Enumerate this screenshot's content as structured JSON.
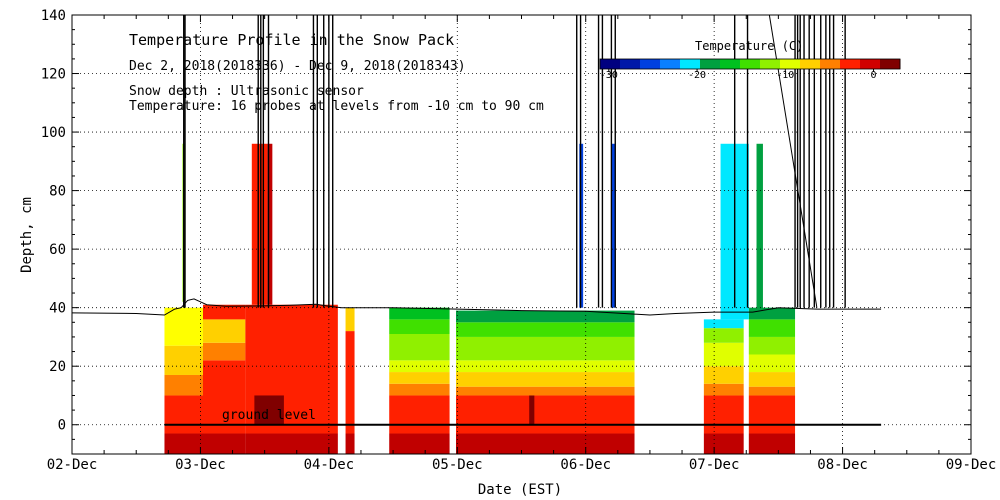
{
  "chart_data": {
    "type": "heatmap",
    "title": "Temperature Profile in the Snow Pack",
    "subtitle": "Dec  2, 2018(2018336) - Dec  9, 2018(2018343)",
    "note_depth": "Snow depth : Ultrasonic sensor",
    "note_temp": "Temperature: 16 probes at levels from -10 cm to 90 cm",
    "ground_label": "ground level",
    "xlabel": "Date (EST)",
    "ylabel": "Depth, cm",
    "x_tick_labels": [
      "02-Dec",
      "03-Dec",
      "04-Dec",
      "05-Dec",
      "06-Dec",
      "07-Dec",
      "08-Dec",
      "09-Dec"
    ],
    "xlim_days": [
      0,
      7
    ],
    "y_ticks": [
      0,
      20,
      40,
      60,
      80,
      100,
      120,
      140
    ],
    "ylim": [
      -10,
      140
    ],
    "grid": true,
    "colorbar": {
      "title": "Temperature (C)",
      "range": [
        -31,
        3
      ],
      "tick_values": [
        -30,
        -20,
        -10,
        0
      ],
      "tick_labels": [
        "-30",
        "-20",
        "-10",
        "0"
      ],
      "colors": [
        "#000080",
        "#0018a8",
        "#0040e0",
        "#0a80ff",
        "#00e8ff",
        "#00a040",
        "#00c020",
        "#40e000",
        "#90f000",
        "#e0ff00",
        "#ffd000",
        "#ff8000",
        "#ff2000",
        "#d00000",
        "#800000"
      ]
    },
    "snow_depth_cm": [
      [
        0.0,
        38.2
      ],
      [
        0.5,
        38.0
      ],
      [
        0.72,
        37.5
      ],
      [
        0.8,
        39.5
      ],
      [
        0.85,
        40.0
      ],
      [
        0.9,
        42.5
      ],
      [
        0.95,
        43.0
      ],
      [
        1.0,
        42.0
      ],
      [
        1.05,
        41.0
      ],
      [
        1.2,
        40.5
      ],
      [
        1.5,
        40.6
      ],
      [
        1.7,
        40.8
      ],
      [
        1.9,
        41.2
      ],
      [
        2.0,
        40.5
      ],
      [
        2.1,
        40.0
      ],
      [
        2.5,
        40.0
      ],
      [
        3.0,
        39.5
      ],
      [
        3.5,
        39.0
      ],
      [
        4.0,
        38.8
      ],
      [
        4.3,
        38.0
      ],
      [
        4.5,
        37.5
      ],
      [
        4.7,
        38.0
      ],
      [
        5.0,
        38.5
      ],
      [
        5.3,
        38.5
      ],
      [
        5.5,
        40.0
      ],
      [
        5.8,
        39.5
      ],
      [
        6.0,
        39.5
      ],
      [
        6.3,
        39.5
      ]
    ],
    "segments": [
      {
        "t0": 0.72,
        "t1": 1.02,
        "bands": [
          [
            -10,
            -3,
            "#c00000"
          ],
          [
            -3,
            10,
            "#ff2000"
          ],
          [
            10,
            17,
            "#ff8000"
          ],
          [
            17,
            27,
            "#ffd000"
          ],
          [
            27,
            40,
            "#ffff00"
          ]
        ]
      },
      {
        "t0": 1.02,
        "t1": 1.35,
        "bands": [
          [
            -10,
            -3,
            "#c00000"
          ],
          [
            -3,
            22,
            "#ff2000"
          ],
          [
            22,
            28,
            "#ff8000"
          ],
          [
            28,
            36,
            "#ffd000"
          ],
          [
            36,
            41,
            "#ff2000"
          ]
        ]
      },
      {
        "t0": 1.35,
        "t1": 2.07,
        "bands": [
          [
            -10,
            -3,
            "#c00000"
          ],
          [
            -3,
            41,
            "#ff2000"
          ]
        ]
      },
      {
        "t0": 2.13,
        "t1": 2.2,
        "bands": [
          [
            -10,
            -3,
            "#c00000"
          ],
          [
            -3,
            32,
            "#ff2000"
          ],
          [
            32,
            40,
            "#ffd000"
          ]
        ]
      },
      {
        "t0": 2.47,
        "t1": 2.94,
        "bands": [
          [
            -10,
            -3,
            "#c00000"
          ],
          [
            -3,
            10,
            "#ff2000"
          ],
          [
            10,
            14,
            "#ff8000"
          ],
          [
            14,
            18,
            "#ffd000"
          ],
          [
            18,
            22,
            "#e0ff00"
          ],
          [
            22,
            31,
            "#90f000"
          ],
          [
            31,
            36,
            "#40e000"
          ],
          [
            36,
            40,
            "#00c020"
          ]
        ]
      },
      {
        "t0": 2.99,
        "t1": 4.38,
        "bands": [
          [
            -10,
            -3,
            "#c00000"
          ],
          [
            -3,
            10,
            "#ff2000"
          ],
          [
            10,
            13,
            "#ff8000"
          ],
          [
            13,
            18,
            "#ffd000"
          ],
          [
            18,
            22,
            "#e0ff00"
          ],
          [
            22,
            30,
            "#90f000"
          ],
          [
            30,
            35,
            "#40e000"
          ],
          [
            35,
            39,
            "#00a040"
          ]
        ]
      },
      {
        "t0": 4.92,
        "t1": 5.23,
        "bands": [
          [
            -10,
            -3,
            "#c00000"
          ],
          [
            -3,
            10,
            "#ff2000"
          ],
          [
            10,
            14,
            "#ff8000"
          ],
          [
            14,
            20,
            "#ffd000"
          ],
          [
            20,
            28,
            "#e0ff00"
          ],
          [
            28,
            33,
            "#90f000"
          ],
          [
            33,
            36,
            "#00e8ff"
          ]
        ]
      },
      {
        "t0": 5.27,
        "t1": 5.63,
        "bands": [
          [
            -10,
            -3,
            "#c00000"
          ],
          [
            -3,
            10,
            "#ff2000"
          ],
          [
            10,
            13,
            "#ff8000"
          ],
          [
            13,
            18,
            "#ffd000"
          ],
          [
            18,
            24,
            "#e0ff00"
          ],
          [
            24,
            30,
            "#90f000"
          ],
          [
            30,
            36,
            "#40e000"
          ],
          [
            36,
            40,
            "#00a040"
          ]
        ]
      }
    ],
    "dark_patches": [
      {
        "t0": 1.42,
        "t1": 1.65,
        "d0": 0,
        "d1": 10,
        "color": "#800000"
      },
      {
        "t0": 3.56,
        "t1": 3.6,
        "d0": 0,
        "d1": 10,
        "color": "#800000"
      }
    ],
    "temp_spikes": [
      {
        "t0": 1.4,
        "t1": 1.52,
        "d0": 41,
        "d1": 96,
        "color": "#ff2000"
      },
      {
        "t0": 1.52,
        "t1": 1.56,
        "d0": 41,
        "d1": 96,
        "color": "#c00000"
      },
      {
        "t0": 3.95,
        "t1": 3.98,
        "d0": 40,
        "d1": 96,
        "color": "#0040e0"
      },
      {
        "t0": 4.2,
        "t1": 4.23,
        "d0": 40,
        "d1": 96,
        "color": "#0040e0"
      },
      {
        "t0": 5.05,
        "t1": 5.27,
        "d0": 36,
        "d1": 96,
        "color": "#00e8ff"
      },
      {
        "t0": 5.33,
        "t1": 5.38,
        "d0": 38,
        "d1": 96,
        "color": "#00a040"
      },
      {
        "t0": 0.86,
        "t1": 0.875,
        "d0": 42,
        "d1": 96,
        "color": "#90f000"
      }
    ],
    "depth_spikes_days": [
      0.87,
      0.88,
      1.45,
      1.47,
      1.49,
      1.53,
      1.88,
      1.91,
      1.96,
      2.0,
      2.03,
      3.93,
      3.96,
      4.1,
      4.13,
      4.2,
      4.23,
      5.16,
      5.26,
      5.63,
      5.65,
      5.67,
      5.7,
      5.74,
      5.78,
      5.83,
      5.87,
      5.9,
      5.93,
      6.02
    ]
  }
}
